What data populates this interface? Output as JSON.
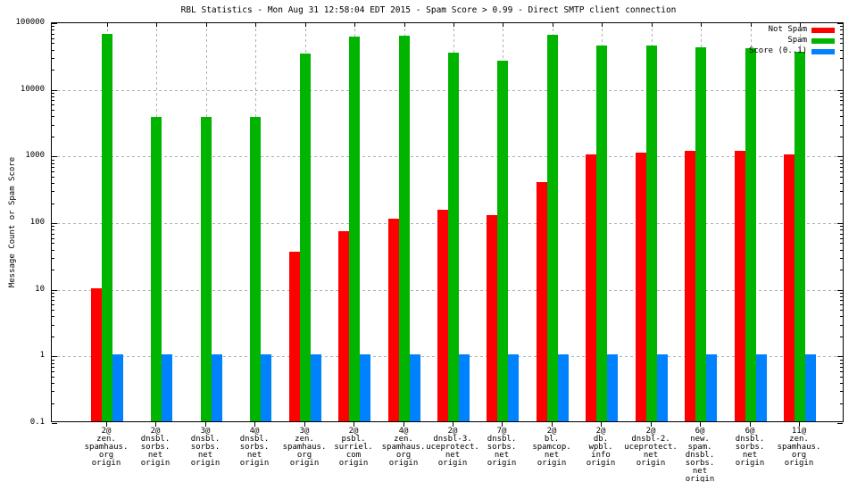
{
  "chart_data": {
    "type": "bar",
    "title": "RBL Statistics - Mon Aug 31 12:58:04 EDT 2015 - Spam Score > 0.99 - Direct SMTP client connection",
    "ylabel": "Message Count or Spam Score",
    "xlabel": "",
    "y_scale": "log",
    "ylim": [
      0.1,
      100000
    ],
    "yticks": [
      "100000",
      "10000",
      "1000",
      "100",
      "10",
      "1",
      "0.1"
    ],
    "grid": {
      "horizontal": "gray dotted line at each decade",
      "vertical": "gray dotted line at each cluster center"
    },
    "legend": {
      "position": "top-right-inside",
      "entries": [
        "Not Spam",
        "Spam",
        "Score (0..1)"
      ]
    },
    "categories": [
      [
        "2@",
        "zen.",
        "spamhaus.",
        "org",
        "origin"
      ],
      [
        "2@",
        "dnsbl.",
        "sorbs.",
        "net",
        "origin"
      ],
      [
        "3@",
        "dnsbl.",
        "sorbs.",
        "net",
        "origin"
      ],
      [
        "4@",
        "dnsbl.",
        "sorbs.",
        "net",
        "origin"
      ],
      [
        "3@",
        "zen.",
        "spamhaus.",
        "org",
        "origin"
      ],
      [
        "2@",
        "psbl.",
        "surriel.",
        "com",
        "origin"
      ],
      [
        "4@",
        "zen.",
        "spamhaus.",
        "org",
        "origin"
      ],
      [
        "2@",
        "dnsbl-3.",
        "uceprotect.",
        "net",
        "origin"
      ],
      [
        "7@",
        "dnsbl.",
        "sorbs.",
        "net",
        "origin"
      ],
      [
        "2@",
        "bl.",
        "spamcop.",
        "net",
        "origin"
      ],
      [
        "2@",
        "db.",
        "wpbl.",
        "info",
        "origin"
      ],
      [
        "2@",
        "dnsbl-2.",
        "uceprotect.",
        "net",
        "origin"
      ],
      [
        "6@",
        "new.",
        "spam.",
        "dnsbl.",
        "sorbs.",
        "net",
        "origin"
      ],
      [
        "6@",
        "dnsbl.",
        "sorbs.",
        "net",
        "origin"
      ],
      [
        "11@",
        "zen.",
        "spamhaus.",
        "org",
        "origin"
      ]
    ],
    "series": [
      {
        "name": "Not Spam",
        "color": "#ff0000",
        "values": [
          10,
          0,
          0,
          0,
          35,
          72,
          110,
          150,
          125,
          390,
          1000,
          1080,
          1140,
          1140,
          1020
        ]
      },
      {
        "name": "Spam",
        "color": "#00b400",
        "values": [
          65000,
          3700,
          3700,
          3700,
          33000,
          58500,
          61000,
          34000,
          26000,
          63000,
          43000,
          43000,
          41000,
          40000,
          35000
        ]
      },
      {
        "name": "Score (0..1)",
        "color": "#0082ff",
        "values": [
          1,
          1,
          1,
          1,
          1,
          1,
          1,
          1,
          1,
          1,
          1,
          1,
          1,
          1,
          1
        ]
      }
    ],
    "colors": {
      "background": "#ffffff",
      "axis": "#000000",
      "grid": "#b0b0b0",
      "text": "#000000"
    }
  }
}
